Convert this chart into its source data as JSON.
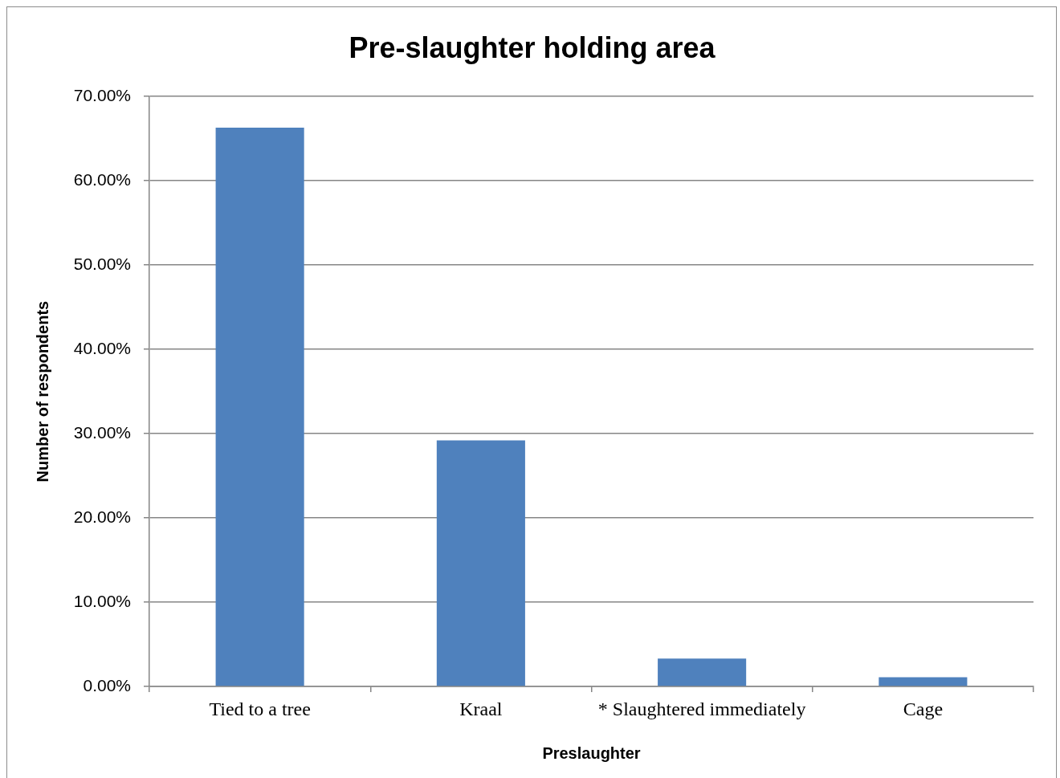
{
  "chart_data": {
    "type": "bar",
    "title": "Pre-slaughter holding area",
    "xlabel": "Preslaughter",
    "ylabel": "Number of respondents",
    "categories": [
      "Tied to a tree",
      "Kraal",
      "* Slaughtered immediately",
      "Cage"
    ],
    "values": [
      66.3,
      29.2,
      3.3,
      1.1
    ],
    "color": "#4f81bd",
    "ylim": [
      0,
      70
    ],
    "yticks": [
      {
        "value": 0,
        "label": "0.00%"
      },
      {
        "value": 10,
        "label": "10.00%"
      },
      {
        "value": 20,
        "label": "20.00%"
      },
      {
        "value": 30,
        "label": "30.00%"
      },
      {
        "value": 40,
        "label": "40.00%"
      },
      {
        "value": 50,
        "label": "50.00%"
      },
      {
        "value": 60,
        "label": "60.00%"
      },
      {
        "value": 70,
        "label": "70.00%"
      }
    ],
    "grid": "y"
  }
}
